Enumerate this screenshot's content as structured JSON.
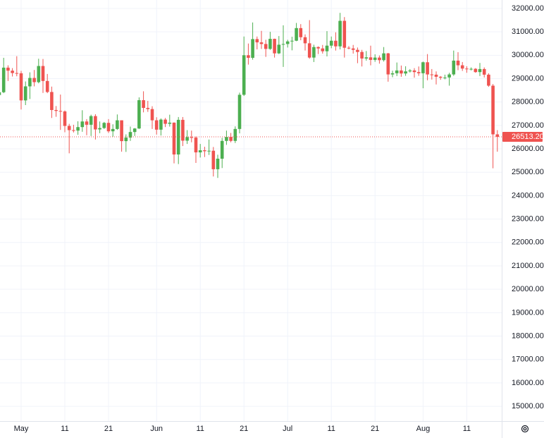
{
  "chart_data": {
    "type": "candlestick",
    "categories": [
      null,
      null,
      null,
      null,
      null,
      "May",
      null,
      null,
      null,
      null,
      null,
      null,
      null,
      null,
      null,
      "11",
      null,
      null,
      null,
      null,
      null,
      null,
      null,
      null,
      null,
      "21",
      null,
      null,
      null,
      null,
      null,
      null,
      null,
      null,
      null,
      null,
      "Jun",
      null,
      null,
      null,
      null,
      null,
      null,
      null,
      null,
      null,
      "11",
      null,
      null,
      null,
      null,
      null,
      null,
      null,
      null,
      null,
      "21",
      null,
      null,
      null,
      null,
      null,
      null,
      null,
      null,
      null,
      "Jul",
      null,
      null,
      null,
      null,
      null,
      null,
      null,
      null,
      null,
      "11",
      null,
      null,
      null,
      null,
      null,
      null,
      null,
      null,
      null,
      "21",
      null,
      null,
      null,
      null,
      null,
      null,
      null,
      null,
      null,
      null,
      "Aug",
      null,
      null,
      null,
      null,
      null,
      null,
      null,
      null,
      null,
      "11",
      null,
      null,
      null,
      null,
      null,
      null,
      null
    ],
    "open": [
      28300,
      28420,
      29470,
      29340,
      29240,
      29230,
      28070,
      28670,
      29030,
      28850,
      29540,
      28900,
      28430,
      27660,
      27620,
      27600,
      26980,
      26800,
      26780,
      26930,
      27170,
      27030,
      27400,
      26830,
      26890,
      27110,
      26750,
      26850,
      27220,
      26330,
      26480,
      26720,
      26870,
      28080,
      27750,
      27700,
      27220,
      26820,
      27250,
      27070,
      27120,
      25760,
      27240,
      26350,
      26500,
      26480,
      25850,
      25940,
      25900,
      25920,
      25130,
      25580,
      26340,
      26510,
      26340,
      26850,
      28310,
      30000,
      29890,
      30690,
      30550,
      30480,
      30270,
      30700,
      30080,
      30450,
      30480,
      30590,
      30620,
      31160,
      30770,
      30510,
      29900,
      30350,
      30290,
      30170,
      30410,
      30620,
      30380,
      31470,
      30320,
      30290,
      30230,
      30140,
      29860,
      29910,
      29800,
      29900,
      29790,
      30080,
      29180,
      29230,
      29350,
      29220,
      29310,
      29350,
      29280,
      29230,
      29700,
      29180,
      29170,
      29080,
      29040,
      29050,
      29180,
      29770,
      29570,
      29430,
      29400,
      29420,
      29280,
      29410,
      29170,
      28700,
      26620
    ],
    "high": [
      30000,
      29890,
      29570,
      29450,
      29960,
      29330,
      28880,
      29270,
      29370,
      29850,
      29840,
      29200,
      28660,
      27830,
      28320,
      27640,
      27070,
      27030,
      27180,
      27650,
      27270,
      27460,
      27480,
      27170,
      27150,
      27270,
      27050,
      27470,
      27220,
      26620,
      26950,
      26890,
      28200,
      28460,
      28050,
      27820,
      27350,
      27300,
      27320,
      27460,
      27130,
      27360,
      27360,
      26800,
      26780,
      26530,
      26210,
      26090,
      26400,
      26080,
      25750,
      26470,
      26780,
      26680,
      26960,
      28400,
      30800,
      30500,
      31400,
      30800,
      31040,
      30660,
      31000,
      30710,
      30820,
      31280,
      30660,
      30790,
      31380,
      31330,
      30890,
      31500,
      30450,
      30380,
      30440,
      31030,
      30800,
      30980,
      31810,
      31630,
      30390,
      30440,
      30330,
      30230,
      30180,
      30410,
      30040,
      29990,
      30350,
      30100,
      29340,
      29690,
      29560,
      29530,
      29410,
      29450,
      29520,
      29730,
      30050,
      29410,
      29310,
      29110,
      29170,
      29250,
      30200,
      30130,
      29710,
      29530,
      29480,
      29450,
      29670,
      29480,
      29230,
      28770,
      26800
    ],
    "low": [
      27250,
      28380,
      28900,
      29090,
      29100,
      27680,
      27870,
      28130,
      28670,
      28800,
      28390,
      28380,
      27320,
      27370,
      26810,
      26710,
      25810,
      26700,
      26600,
      26730,
      26580,
      26550,
      26400,
      26670,
      26850,
      26680,
      26520,
      26810,
      25880,
      25870,
      26340,
      26550,
      26850,
      27560,
      27580,
      26850,
      26610,
      26570,
      26930,
      26950,
      25380,
      25350,
      26120,
      26210,
      26280,
      25400,
      25630,
      25650,
      25740,
      24820,
      24760,
      25180,
      26170,
      26280,
      26250,
      26660,
      28260,
      29600,
      29810,
      30250,
      30270,
      29930,
      30230,
      29900,
      30050,
      29500,
      30330,
      30210,
      30600,
      30640,
      30200,
      29850,
      29710,
      30050,
      30070,
      29950,
      30300,
      30200,
      30250,
      29900,
      30250,
      30070,
      29660,
      29520,
      29770,
      29570,
      29720,
      29640,
      29730,
      28870,
      29060,
      29110,
      29080,
      29120,
      29260,
      29040,
      29120,
      28590,
      28930,
      28960,
      28750,
      28950,
      28970,
      28700,
      29120,
      29360,
      29330,
      29250,
      29350,
      29250,
      29110,
      29050,
      28650,
      25170,
      25880
    ],
    "close": [
      28420,
      29470,
      29340,
      29240,
      29230,
      28070,
      28670,
      29030,
      28850,
      29540,
      28900,
      28430,
      27660,
      27620,
      27600,
      26980,
      26800,
      26780,
      26930,
      27170,
      27030,
      27400,
      26830,
      26890,
      27110,
      26750,
      26850,
      27220,
      26330,
      26480,
      26720,
      26870,
      28080,
      27750,
      27700,
      27220,
      26820,
      27250,
      27070,
      27120,
      25760,
      27240,
      26350,
      26500,
      26480,
      25850,
      25940,
      25900,
      25920,
      25130,
      25580,
      26340,
      26510,
      26340,
      26850,
      28310,
      30000,
      29890,
      30690,
      30550,
      30480,
      30270,
      30700,
      30080,
      30450,
      30480,
      30590,
      30620,
      31160,
      30770,
      30510,
      29900,
      30350,
      30290,
      30170,
      30410,
      30620,
      30380,
      31470,
      30320,
      30290,
      30230,
      30140,
      29860,
      29910,
      29800,
      29900,
      29790,
      30080,
      29180,
      29230,
      29350,
      29220,
      29310,
      29350,
      29280,
      29230,
      29700,
      29180,
      29170,
      29080,
      29040,
      29050,
      29180,
      29770,
      29570,
      29430,
      29400,
      29420,
      29280,
      29410,
      29170,
      28700,
      26620,
      26513.2
    ],
    "up_color": "#4caf50",
    "down_color": "#ef5350",
    "ylim": [
      14370,
      32360
    ],
    "yticks": [
      {
        "value": 15000,
        "label": "15000.00"
      },
      {
        "value": 16000,
        "label": "16000.00"
      },
      {
        "value": 17000,
        "label": "17000.00"
      },
      {
        "value": 18000,
        "label": "18000.00"
      },
      {
        "value": 19000,
        "label": "19000.00"
      },
      {
        "value": 20000,
        "label": "20000.00"
      },
      {
        "value": 21000,
        "label": "21000.00"
      },
      {
        "value": 22000,
        "label": "22000.00"
      },
      {
        "value": 23000,
        "label": "23000.00"
      },
      {
        "value": 24000,
        "label": "24000.00"
      },
      {
        "value": 25000,
        "label": "25000.00"
      },
      {
        "value": 26000,
        "label": "26000.00"
      },
      {
        "value": 27000,
        "label": "27000.00"
      },
      {
        "value": 28000,
        "label": "28000.00"
      },
      {
        "value": 29000,
        "label": "29000.00"
      },
      {
        "value": 30000,
        "label": "30000.00"
      },
      {
        "value": 31000,
        "label": "31000.00"
      },
      {
        "value": 32000,
        "label": "32000.00"
      }
    ],
    "last_price": {
      "value": 26513.2,
      "label": "26513.20"
    },
    "grid": true
  }
}
